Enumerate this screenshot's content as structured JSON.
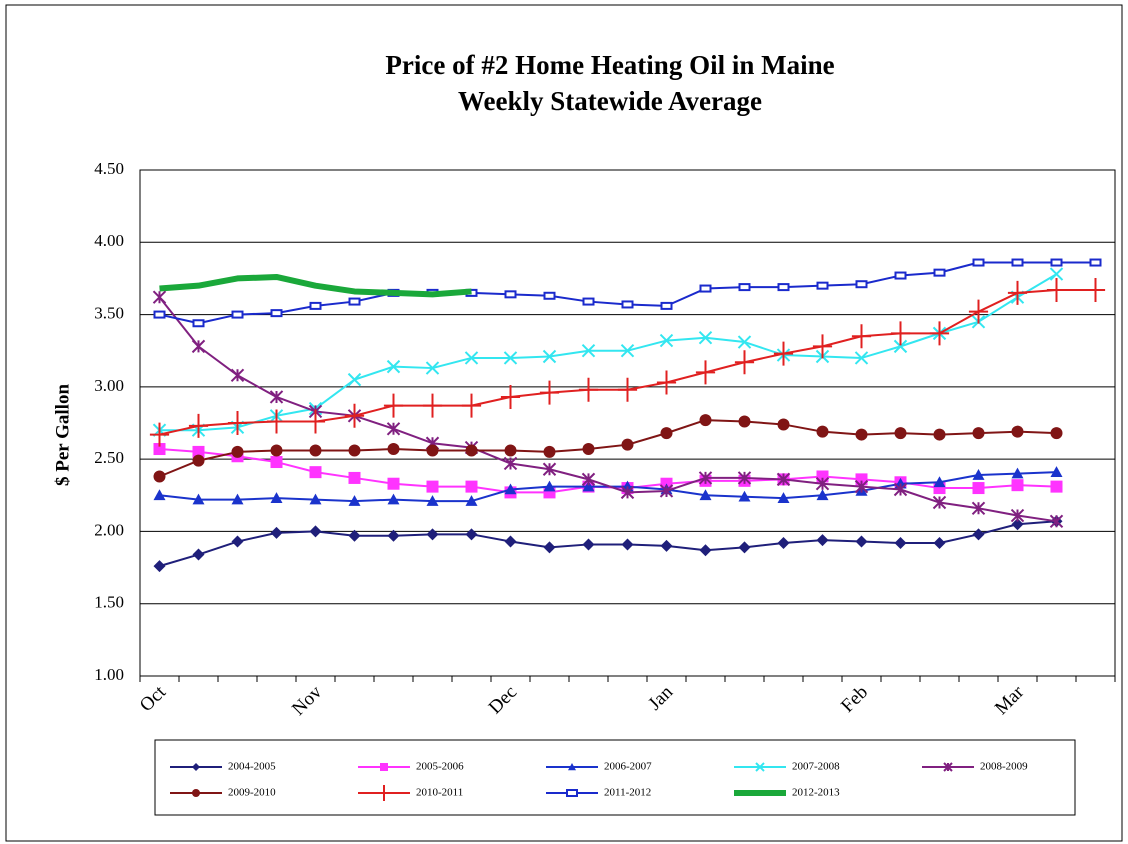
{
  "chart_data": {
    "type": "line",
    "title": "Price of #2 Home Heating Oil in Maine",
    "subtitle": "Weekly Statewide Average",
    "y_label": "$ Per Gallon",
    "categories": [
      "Oct",
      null,
      null,
      null,
      "Nov",
      null,
      null,
      null,
      null,
      "Dec",
      null,
      null,
      null,
      "Jan",
      null,
      null,
      null,
      null,
      "Feb",
      null,
      null,
      null,
      "Mar",
      null,
      null
    ],
    "ylim": [
      1.0,
      4.5
    ],
    "yticks": [
      {
        "value": 1.0,
        "label": "1.00"
      },
      {
        "value": 1.5,
        "label": "1.50"
      },
      {
        "value": 2.0,
        "label": "2.00"
      },
      {
        "value": 2.5,
        "label": "2.50"
      },
      {
        "value": 3.0,
        "label": "3.00"
      },
      {
        "value": 3.5,
        "label": "3.50"
      },
      {
        "value": 4.0,
        "label": "4.00"
      },
      {
        "value": 4.5,
        "label": "4.50"
      }
    ],
    "grid": true,
    "series": [
      {
        "name": "2004-2005",
        "color": "#1f1f7a",
        "marker": "diamond",
        "values": [
          1.76,
          1.84,
          1.93,
          1.99,
          2.0,
          1.97,
          1.97,
          1.98,
          1.98,
          1.93,
          1.89,
          1.91,
          1.91,
          1.9,
          1.87,
          1.89,
          1.92,
          1.94,
          1.93,
          1.92,
          1.92,
          1.98,
          2.05,
          2.07,
          null
        ]
      },
      {
        "name": "2005-2006",
        "color": "#ff33ff",
        "marker": "square",
        "values": [
          2.57,
          2.55,
          2.52,
          2.48,
          2.41,
          2.37,
          2.33,
          2.31,
          2.31,
          2.27,
          2.27,
          2.31,
          2.3,
          2.33,
          2.35,
          2.35,
          2.36,
          2.38,
          2.36,
          2.34,
          2.3,
          2.3,
          2.32,
          2.31,
          null
        ]
      },
      {
        "name": "2006-2007",
        "color": "#1a33cc",
        "marker": "triangle",
        "values": [
          2.25,
          2.22,
          2.22,
          2.23,
          2.22,
          2.21,
          2.22,
          2.21,
          2.21,
          2.29,
          2.31,
          2.31,
          2.31,
          2.29,
          2.25,
          2.24,
          2.23,
          2.25,
          2.28,
          2.33,
          2.34,
          2.39,
          2.4,
          2.41,
          null
        ]
      },
      {
        "name": "2007-2008",
        "color": "#33e6f0",
        "marker": "x",
        "values": [
          2.7,
          2.7,
          2.72,
          2.8,
          2.85,
          3.05,
          3.14,
          3.13,
          3.2,
          3.2,
          3.21,
          3.25,
          3.25,
          3.32,
          3.34,
          3.31,
          3.22,
          3.21,
          3.2,
          3.28,
          3.37,
          3.45,
          3.62,
          3.78,
          null
        ]
      },
      {
        "name": "2008-2009",
        "color": "#802080",
        "marker": "star",
        "values": [
          3.62,
          3.28,
          3.08,
          2.93,
          2.83,
          2.8,
          2.71,
          2.61,
          2.58,
          2.47,
          2.43,
          2.36,
          2.27,
          2.28,
          2.37,
          2.37,
          2.36,
          2.33,
          2.31,
          2.29,
          2.2,
          2.16,
          2.11,
          2.07,
          null
        ]
      },
      {
        "name": "2009-2010",
        "color": "#801515",
        "marker": "circle",
        "values": [
          2.38,
          2.49,
          2.55,
          2.56,
          2.56,
          2.56,
          2.57,
          2.56,
          2.56,
          2.56,
          2.55,
          2.57,
          2.6,
          2.68,
          2.77,
          2.76,
          2.74,
          2.69,
          2.67,
          2.68,
          2.67,
          2.68,
          2.69,
          2.68,
          null
        ]
      },
      {
        "name": "2010-2011",
        "color": "#e02020",
        "marker": "plus",
        "values": [
          2.67,
          2.73,
          2.75,
          2.76,
          2.76,
          2.8,
          2.87,
          2.87,
          2.87,
          2.93,
          2.96,
          2.98,
          2.98,
          3.03,
          3.1,
          3.17,
          3.23,
          3.28,
          3.35,
          3.37,
          3.37,
          3.52,
          3.65,
          3.67,
          3.67
        ]
      },
      {
        "name": "2011-2012",
        "color": "#1a2acc",
        "marker": "hollow-square",
        "values": [
          3.5,
          3.44,
          3.5,
          3.51,
          3.56,
          3.59,
          3.65,
          3.65,
          3.65,
          3.64,
          3.63,
          3.59,
          3.57,
          3.56,
          3.68,
          3.69,
          3.69,
          3.7,
          3.71,
          3.77,
          3.79,
          3.86,
          3.86,
          3.86,
          3.86
        ]
      },
      {
        "name": "2012-2013",
        "color": "#1aa83a",
        "marker": "none",
        "line_width": 6,
        "values": [
          3.68,
          3.7,
          3.75,
          3.76,
          3.7,
          3.66,
          3.65,
          3.64,
          3.66,
          null,
          null,
          null,
          null,
          null,
          null,
          null,
          null,
          null,
          null,
          null,
          null,
          null,
          null,
          null,
          null
        ]
      }
    ]
  }
}
